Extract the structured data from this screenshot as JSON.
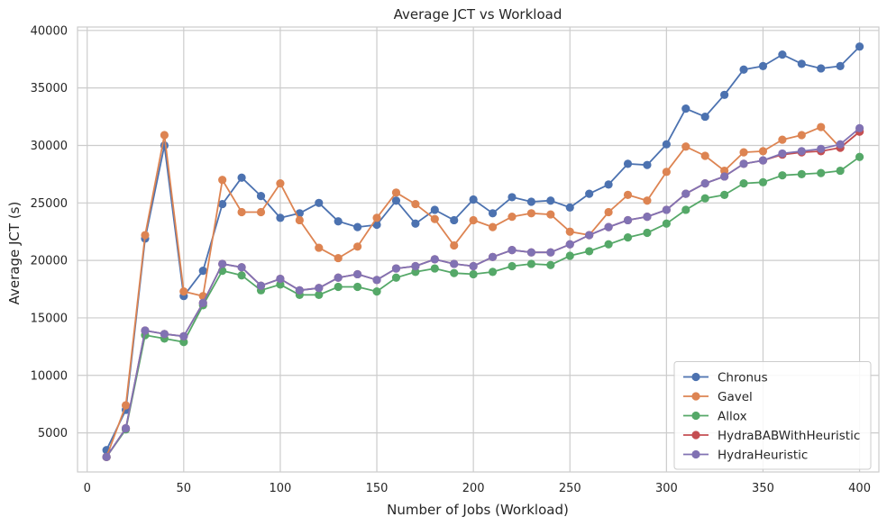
{
  "chart_data": {
    "type": "line",
    "title": "Average JCT vs Workload",
    "xlabel": "Number of Jobs (Workload)",
    "ylabel": "Average JCT (s)",
    "xlim": [
      -5,
      410
    ],
    "ylim": [
      1600,
      40300
    ],
    "xticks": [
      0,
      50,
      100,
      150,
      200,
      250,
      300,
      350,
      400
    ],
    "yticks": [
      5000,
      10000,
      15000,
      20000,
      25000,
      30000,
      35000,
      40000
    ],
    "grid": true,
    "legend_position": "lower-right",
    "x": [
      10,
      20,
      30,
      40,
      50,
      60,
      70,
      80,
      90,
      100,
      110,
      120,
      130,
      140,
      150,
      160,
      170,
      180,
      190,
      200,
      210,
      220,
      230,
      240,
      250,
      260,
      270,
      280,
      290,
      300,
      310,
      320,
      330,
      340,
      350,
      360,
      370,
      380,
      390,
      400
    ],
    "series": [
      {
        "name": "Chronus",
        "color": "#4c72b0",
        "values": [
          3500,
          7000,
          21900,
          30000,
          16900,
          19100,
          24900,
          27200,
          25600,
          23700,
          24100,
          25000,
          23400,
          22900,
          23100,
          25200,
          23200,
          24400,
          23500,
          25300,
          24100,
          25500,
          25100,
          25200,
          24600,
          25800,
          26600,
          28400,
          28300,
          30100,
          33200,
          32500,
          34400,
          36600,
          36900,
          37900,
          37100,
          36700,
          36900,
          38600
        ]
      },
      {
        "name": "Gavel",
        "color": "#dd8452",
        "values": [
          2900,
          7400,
          22200,
          30900,
          17300,
          16900,
          27000,
          24200,
          24200,
          26700,
          23500,
          21100,
          20200,
          21200,
          23700,
          25900,
          24900,
          23600,
          21300,
          23500,
          22900,
          23800,
          24100,
          24000,
          22500,
          22200,
          24200,
          25700,
          25200,
          27700,
          29900,
          29100,
          27800,
          29400,
          29500,
          30500,
          30900,
          31600,
          29800,
          31200
        ]
      },
      {
        "name": "Allox",
        "color": "#55a868",
        "values": [
          2900,
          5300,
          13500,
          13200,
          12900,
          16100,
          19100,
          18700,
          17400,
          17900,
          17000,
          17000,
          17700,
          17700,
          17300,
          18500,
          19000,
          19300,
          18900,
          18800,
          19000,
          19500,
          19700,
          19600,
          20400,
          20800,
          21400,
          22000,
          22400,
          23200,
          24400,
          25400,
          25700,
          26700,
          26800,
          27400,
          27500,
          27600,
          27800,
          29000
        ]
      },
      {
        "name": "HydraBABWithHeuristic",
        "color": "#c44e52",
        "values": [
          2900,
          5400,
          13900,
          13600,
          13400,
          16300,
          19700,
          19400,
          17800,
          18400,
          17400,
          17600,
          18500,
          18800,
          18300,
          19300,
          19500,
          20100,
          19700,
          19500,
          20300,
          20900,
          20700,
          20700,
          21400,
          22200,
          22900,
          23500,
          23800,
          24400,
          25800,
          26700,
          27300,
          28400,
          28700,
          29200,
          29400,
          29500,
          29800,
          31200
        ]
      },
      {
        "name": "HydraHeuristic",
        "color": "#8172b3",
        "values": [
          2900,
          5400,
          13900,
          13600,
          13400,
          16300,
          19700,
          19400,
          17800,
          18400,
          17400,
          17600,
          18500,
          18800,
          18300,
          19300,
          19500,
          20100,
          19700,
          19500,
          20300,
          20900,
          20700,
          20700,
          21400,
          22200,
          22900,
          23500,
          23800,
          24400,
          25800,
          26700,
          27300,
          28400,
          28700,
          29300,
          29500,
          29700,
          30100,
          31500
        ]
      }
    ]
  },
  "style": {
    "grid_color": "#cccccc",
    "axes_edge_color": "#cccccc",
    "background": "#ffffff"
  }
}
